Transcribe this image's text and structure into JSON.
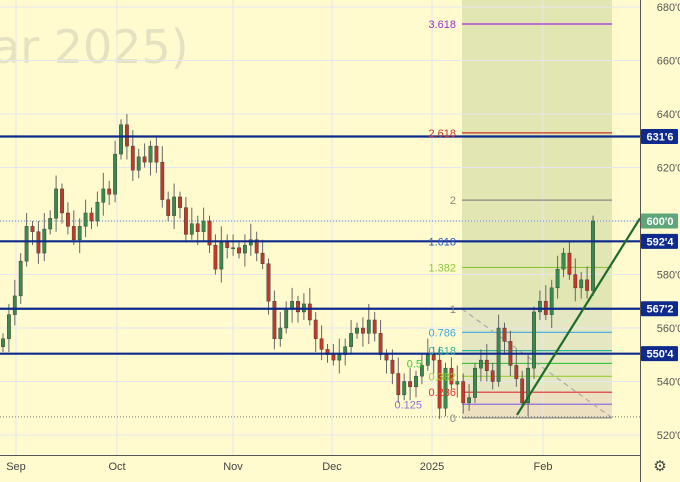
{
  "watermark": "ar 2025)",
  "chart_data": {
    "type": "candlestick",
    "x_tick_labels": [
      "Sep",
      "Oct",
      "Nov",
      "Dec",
      "2025",
      "Feb"
    ],
    "y_ticks": [
      520,
      540,
      560,
      580,
      600,
      620,
      640,
      660,
      680
    ],
    "y_tick_labels": [
      "520'0",
      "540'0",
      "560'0",
      "580'0",
      "600'0",
      "620'0",
      "640'0",
      "660'0",
      "680'0"
    ],
    "ylim": [
      515,
      685
    ],
    "grid": true,
    "closes": [
      556,
      565,
      572,
      585,
      598,
      596,
      588,
      597,
      601,
      612,
      603,
      598,
      593,
      598,
      603,
      600,
      607,
      612,
      610,
      625,
      636,
      628,
      619,
      624,
      622,
      628,
      622,
      608,
      602,
      609,
      605,
      595,
      599,
      596,
      600,
      591,
      582,
      592,
      590,
      590,
      588,
      591,
      593,
      588,
      584,
      570,
      556,
      560,
      567,
      570,
      566,
      569,
      563,
      556,
      552,
      550,
      548,
      550,
      553,
      558,
      560,
      558,
      563,
      558,
      550,
      548,
      543,
      535,
      540,
      538,
      542,
      546,
      550,
      548,
      530,
      545,
      539,
      540,
      532,
      534,
      545,
      548,
      544,
      540,
      560,
      555,
      546,
      541,
      532,
      545,
      566,
      570,
      565,
      575,
      582,
      588,
      580,
      575,
      578,
      574,
      600
    ],
    "first_open": 553,
    "up_color": "#3a8a4f",
    "down_color": "#c0392b",
    "horizontal_levels": [
      {
        "value": 631.6,
        "label": "631'6"
      },
      {
        "value": 592.4,
        "label": "592'4"
      },
      {
        "value": 567.2,
        "label": "567'2"
      },
      {
        "value": 550.4,
        "label": "550'4"
      }
    ],
    "level_color": "#0d2a8c",
    "current_price": {
      "value": 600.0,
      "label": "600'0",
      "color": "#5fa57a"
    },
    "fibonacci": {
      "low": 526.4,
      "high": 567.1,
      "levels": [
        {
          "ratio": "3.618",
          "color": "#9b30d9"
        },
        {
          "ratio": "2.618",
          "color": "#d0312d"
        },
        {
          "ratio": "2",
          "color": "#888888"
        },
        {
          "ratio": "1.618",
          "color": "#2a55c8"
        },
        {
          "ratio": "1.382",
          "color": "#8cc63f"
        },
        {
          "ratio": "1",
          "color": "#888888"
        },
        {
          "ratio": "0.786",
          "color": "#3fa9e0"
        },
        {
          "ratio": "0.618",
          "color": "#2bb59a"
        },
        {
          "ratio": "0.5",
          "color": "#3cc43c"
        },
        {
          "ratio": "0.382",
          "color": "#9acd32"
        },
        {
          "ratio": "0.236",
          "color": "#e03030"
        },
        {
          "ratio": "0.125",
          "color": "#8a6fd8"
        },
        {
          "ratio": "0",
          "color": "#888888"
        }
      ]
    },
    "trend_line": {
      "from": [
        532,
        527.5
      ],
      "to": [
        640,
        601
      ],
      "color": "#1e6b2a"
    }
  }
}
